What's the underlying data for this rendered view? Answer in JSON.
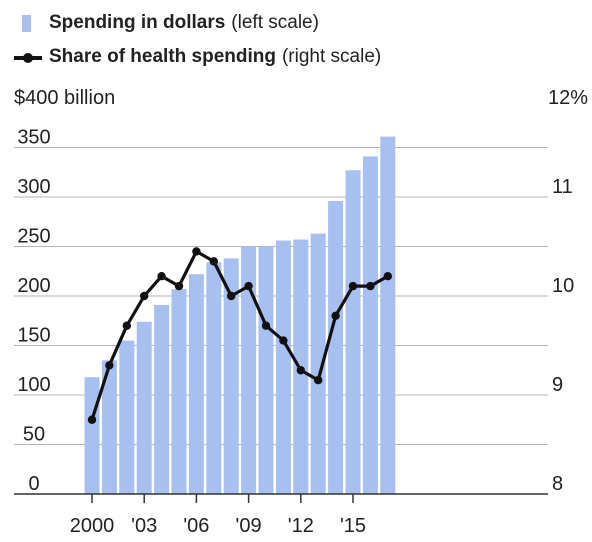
{
  "legend": {
    "bar_name": "Spending in dollars",
    "bar_note": "(left scale)",
    "line_name": "Share of health spending",
    "line_note": "(right scale)"
  },
  "colors": {
    "bar": "#a8c0f0",
    "line": "#111111",
    "grid": "#b5b5b5",
    "text": "#222222"
  },
  "chart_data": {
    "type": "bar",
    "x": [
      2000,
      2001,
      2002,
      2003,
      2004,
      2005,
      2006,
      2007,
      2008,
      2009,
      2010,
      2011,
      2012,
      2013,
      2014,
      2015,
      2016,
      2017
    ],
    "series": [
      {
        "name": "Spending in dollars",
        "type": "bar",
        "axis": "left",
        "values": [
          118,
          135,
          155,
          174,
          191,
          207,
          222,
          234,
          238,
          250,
          250,
          256,
          257,
          263,
          296,
          327,
          341,
          361
        ]
      },
      {
        "name": "Share of health spending",
        "type": "line",
        "axis": "right",
        "values": [
          8.75,
          9.3,
          9.7,
          10.0,
          10.2,
          10.1,
          10.45,
          10.35,
          10.0,
          10.1,
          9.7,
          9.55,
          9.25,
          9.15,
          9.8,
          10.1,
          10.1,
          10.2
        ]
      }
    ],
    "left_axis": {
      "ylim": [
        0,
        400
      ],
      "ticks": [
        0,
        50,
        100,
        150,
        200,
        250,
        300,
        350,
        400
      ],
      "tick_labels": [
        "0",
        "50",
        "100",
        "150",
        "200",
        "250",
        "300",
        "350",
        "$400 billion"
      ]
    },
    "right_axis": {
      "ylim": [
        8,
        12
      ],
      "ticks": [
        8,
        9,
        10,
        11,
        12
      ],
      "tick_labels": [
        "8",
        "9",
        "10",
        "11",
        "12%"
      ]
    },
    "x_axis": {
      "ticks": [
        2000,
        2003,
        2006,
        2009,
        2012,
        2015
      ],
      "tick_labels": [
        "2000",
        "'03",
        "'06",
        "'09",
        "'12",
        "'15"
      ]
    },
    "grid": true,
    "legend_position": "top-left"
  }
}
